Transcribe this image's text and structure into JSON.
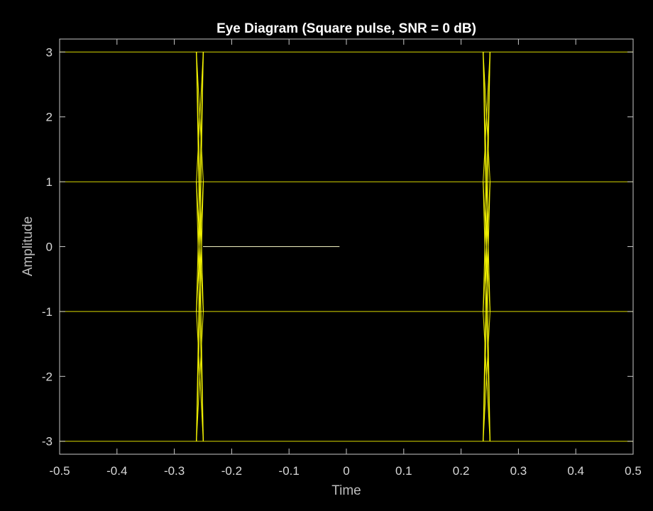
{
  "chart_data": {
    "type": "line",
    "title": "Eye Diagram (Square pulse, SNR = 0 dB)",
    "xlabel": "Time",
    "ylabel": "Amplitude",
    "xlim": [
      -0.5,
      0.5
    ],
    "ylim": [
      -3.2,
      3.2
    ],
    "x_ticks": [
      -0.5,
      -0.4,
      -0.3,
      -0.2,
      -0.1,
      0,
      0.1,
      0.2,
      0.3,
      0.4,
      0.5
    ],
    "y_ticks": [
      -3,
      -2,
      -1,
      0,
      1,
      2,
      3
    ],
    "x_tick_labels": [
      "-0.5",
      "-0.4",
      "-0.3",
      "-0.2",
      "-0.1",
      "0",
      "0.1",
      "0.2",
      "0.3",
      "0.4",
      "0.5"
    ],
    "y_tick_labels": [
      "-3",
      "-2",
      "-1",
      "0",
      "1",
      "2",
      "3"
    ],
    "grid": false,
    "background": "#000000",
    "axes_color": "#c8c8c8",
    "trace_color": "#ffff00",
    "levels": [
      -3,
      -1,
      1,
      3
    ],
    "transition_times": [
      -0.2555,
      0.2445
    ],
    "transition_half_width": 0.006,
    "partial_trace": {
      "x": [
        -0.25,
        -0.012
      ],
      "y": [
        0,
        0
      ]
    }
  }
}
